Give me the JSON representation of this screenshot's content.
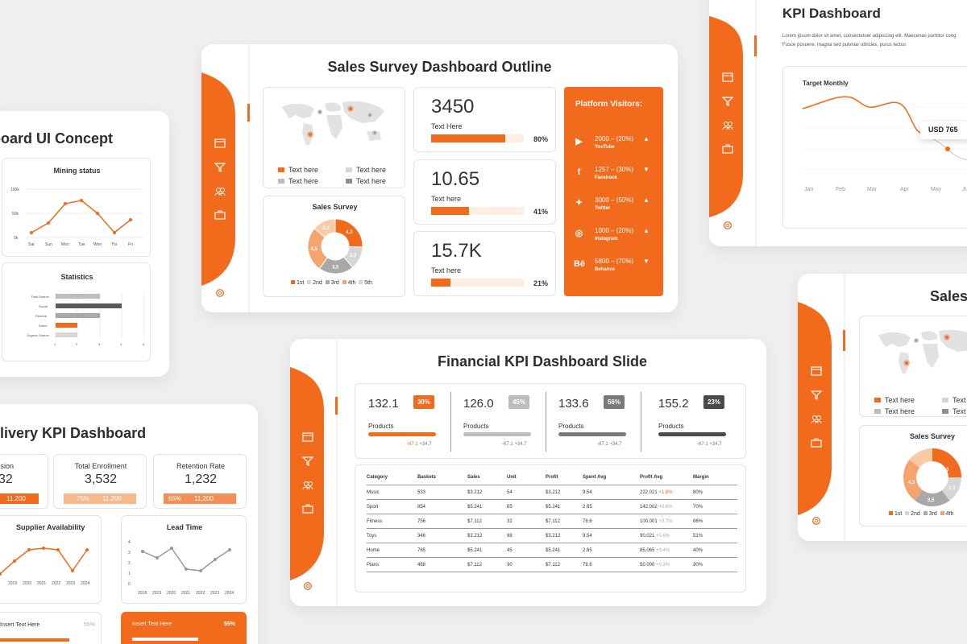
{
  "slide_sales_survey": {
    "title": "Sales Survey Dashboard Outline",
    "map_legend": [
      {
        "label": "Text here",
        "color": "#f26a1b"
      },
      {
        "label": "Text here",
        "color": "#d6d6d6"
      },
      {
        "label": "Text here",
        "color": "#bdbdbd"
      },
      {
        "label": "Text here",
        "color": "#8f8f8f"
      }
    ],
    "donut": {
      "title": "Sales Survey",
      "slices": [
        {
          "label": "4,3",
          "value": 4.3,
          "color": "#f26a1b"
        },
        {
          "label": "2,3",
          "value": 2.3,
          "color": "#d6d6d6"
        },
        {
          "label": "3,5",
          "value": 3.5,
          "color": "#a8a8a8"
        },
        {
          "label": "4,5",
          "value": 4.5,
          "color": "#f6a46e"
        },
        {
          "label": "2,3",
          "value": 2.3,
          "color": "#fac9a6"
        }
      ],
      "legend": [
        "1st",
        "2nd",
        "3rd",
        "4th",
        "5th"
      ]
    },
    "kpis": [
      {
        "value": "3450",
        "label": "Text Here",
        "pct": "80%",
        "fill": 0.8
      },
      {
        "value": "10.65",
        "label": "Text here",
        "pct": "41%",
        "fill": 0.41
      },
      {
        "value": "15.7K",
        "label": "Text here",
        "pct": "21%",
        "fill": 0.21
      }
    ],
    "platform": {
      "title": "Platform Visitors:",
      "rows": [
        {
          "icon": "youtube-icon",
          "range": "2000 – (20%)",
          "name": "YouTube",
          "trend": "▲"
        },
        {
          "icon": "facebook-icon",
          "range": "1257 – (30%)",
          "name": "Facebook",
          "trend": "▼"
        },
        {
          "icon": "twitter-icon",
          "range": "3000 – (50%)",
          "name": "Twitter",
          "trend": "▲"
        },
        {
          "icon": "instagram-icon",
          "range": "1000 – (20%)",
          "name": "Instagram",
          "trend": "▲"
        },
        {
          "icon": "behance-icon",
          "range": "5800 – (70%)",
          "name": "Behance",
          "trend": "▼"
        }
      ],
      "icon_glyphs": [
        "▶",
        "f",
        "✦",
        "◎",
        "Bē"
      ]
    }
  },
  "slide_ui_concept": {
    "title": "board UI Concept",
    "mining": {
      "title": "Mining status",
      "y_ticks": [
        "100k",
        "50k",
        "0k"
      ],
      "x_ticks": [
        "Sat",
        "Sun",
        "Mon",
        "Tue",
        "Wen",
        "Thr",
        "Fri"
      ]
    },
    "statistics": {
      "title": "Statistics",
      "rows": [
        "Paid Search",
        "Social",
        "Referral",
        "Direct",
        "Organic Search"
      ],
      "x_ticks": [
        "1",
        "2",
        "3",
        "4",
        "5"
      ]
    }
  },
  "slide_delivery": {
    "title": "elivery KPI Dashboard",
    "cards": [
      {
        "title": "ssion",
        "value": "32",
        "left": "",
        "right": "11,200"
      },
      {
        "title": "Total Enrollment",
        "value": "3,532",
        "left": "75%",
        "right": "11,200"
      },
      {
        "title": "Retention Rate",
        "value": "1,232",
        "left": "65%",
        "right": "11,200"
      }
    ],
    "supplier": {
      "title": "Supplier Availability",
      "x_ticks": [
        "2019",
        "2020",
        "2021",
        "2022",
        "2023",
        "2024"
      ]
    },
    "lead": {
      "title": "Lead Time",
      "y_ticks": [
        "4",
        "3",
        "2",
        "1",
        "0"
      ],
      "x_ticks": [
        "2018",
        "2019",
        "2020",
        "2021",
        "2022",
        "2023",
        "2024"
      ]
    },
    "bottom_left": {
      "text": "Insert Text Here",
      "pct": "55%"
    },
    "bottom_right": {
      "text": "Insert Text Here",
      "pct": "55%"
    }
  },
  "slide_financial": {
    "title": "Financial KPI Dashboard Slide",
    "kpis": [
      {
        "value": "132.1",
        "badge": "30%",
        "label": "Products",
        "delta_a": "-67.1",
        "delta_b": "+34.7",
        "color": "#f26a1b"
      },
      {
        "value": "126.0",
        "badge": "45%",
        "label": "Products",
        "delta_a": "-67.1",
        "delta_b": "+34.7",
        "color": "#bdbdbd"
      },
      {
        "value": "133.6",
        "badge": "56%",
        "label": "Products",
        "delta_a": "-67.1",
        "delta_b": "+34.7",
        "color": "#7a7a7a"
      },
      {
        "value": "155.2",
        "badge": "23%",
        "label": "Products",
        "delta_a": "-67.1",
        "delta_b": "+34.7",
        "color": "#4a4a4a"
      }
    ],
    "table": {
      "headers": [
        "Category",
        "Baskets",
        "Sales",
        "Unit",
        "Profit",
        "Spent Avg",
        "Profit Avg",
        "Margin"
      ],
      "rows": [
        [
          "Music",
          "533",
          "$3.212",
          "54",
          "$3.212",
          "9.54",
          "222.021",
          "+1.8%",
          "80%"
        ],
        [
          "Sport",
          "854",
          "$5.241",
          "65",
          "$5.241",
          "2.65",
          "142.002",
          "+0.6%",
          "70%"
        ],
        [
          "Fitness",
          "756",
          "$7.112",
          "32",
          "$7.112",
          "78.6",
          "100.001",
          "+0.7%",
          "66%"
        ],
        [
          "Toys",
          "346",
          "$3.212",
          "98",
          "$3.212",
          "9.54",
          "90.021",
          "+0.6%",
          "51%"
        ],
        [
          "Home",
          "765",
          "$5.241",
          "45",
          "$5.241",
          "2.65",
          "85.065",
          "+0.4%",
          "40%"
        ],
        [
          "Plans",
          "468",
          "$7.112",
          "30",
          "$7.112",
          "78.6",
          "50.000",
          "+0.3%",
          "30%"
        ]
      ]
    }
  },
  "slide_kpi": {
    "title": "KPI Dashboard",
    "desc_1": "Lorem ipsum dolor sit amet, consectetuer adipiscing elit. Maecenas porttitor cong",
    "desc_2": "Fusce posuere, magna sed pulvinar ultricies, purus lectus",
    "chart_title": "Target Monthly",
    "tooltip": "USD 765",
    "months": [
      "Jan",
      "Feb",
      "Mar",
      "Apr",
      "May",
      "Ju"
    ]
  },
  "slide_sales_partial": {
    "title": "Sales",
    "legend": [
      {
        "label": "Text here",
        "color": "#f26a1b"
      },
      {
        "label": "Text",
        "color": "#d6d6d6"
      },
      {
        "label": "Text here",
        "color": "#bdbdbd"
      },
      {
        "label": "Text",
        "color": "#8f8f8f"
      }
    ],
    "donut_title": "Sales Survey",
    "donut_labels": [
      "4,3",
      "2,3",
      "3,5",
      "4,3"
    ],
    "donut_legend": [
      "1st",
      "2nd",
      "3rd",
      "4th"
    ]
  }
}
